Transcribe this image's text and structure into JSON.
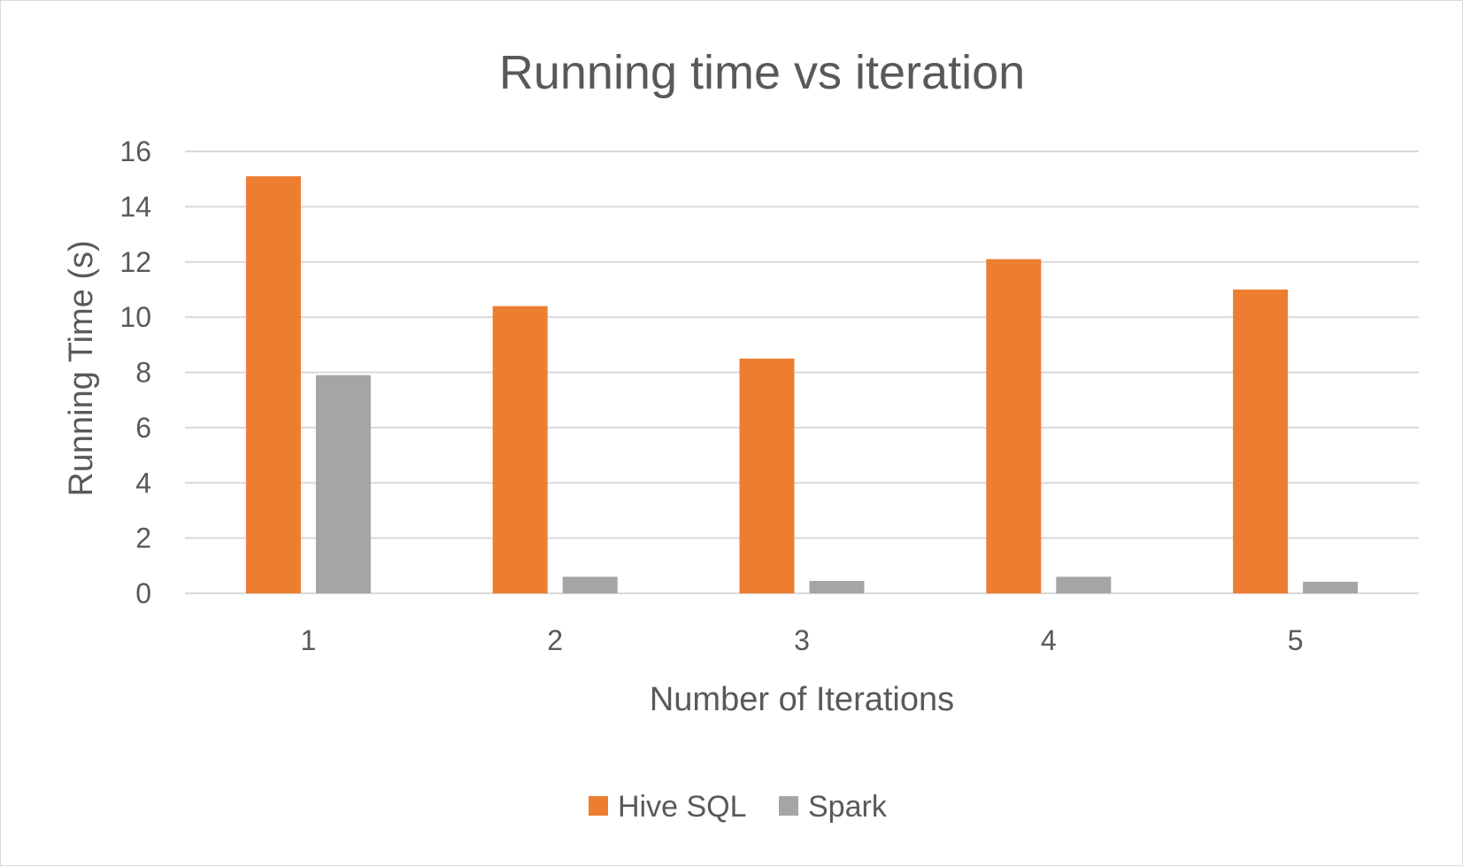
{
  "chart_data": {
    "type": "bar",
    "title": "Running time vs iteration",
    "xlabel": "Number of Iterations",
    "ylabel": "Running Time (s)",
    "categories": [
      "1",
      "2",
      "3",
      "4",
      "5"
    ],
    "series": [
      {
        "name": "Hive SQL",
        "color": "#ED7D31",
        "values": [
          15.1,
          10.4,
          8.5,
          12.1,
          11.0
        ]
      },
      {
        "name": "Spark",
        "color": "#A5A5A5",
        "values": [
          7.9,
          0.6,
          0.45,
          0.6,
          0.42
        ]
      }
    ],
    "ylim": [
      0,
      16
    ],
    "yticks": [
      "0",
      "2",
      "4",
      "6",
      "8",
      "10",
      "12",
      "14",
      "16"
    ],
    "grid": true,
    "legend_position": "bottom"
  }
}
